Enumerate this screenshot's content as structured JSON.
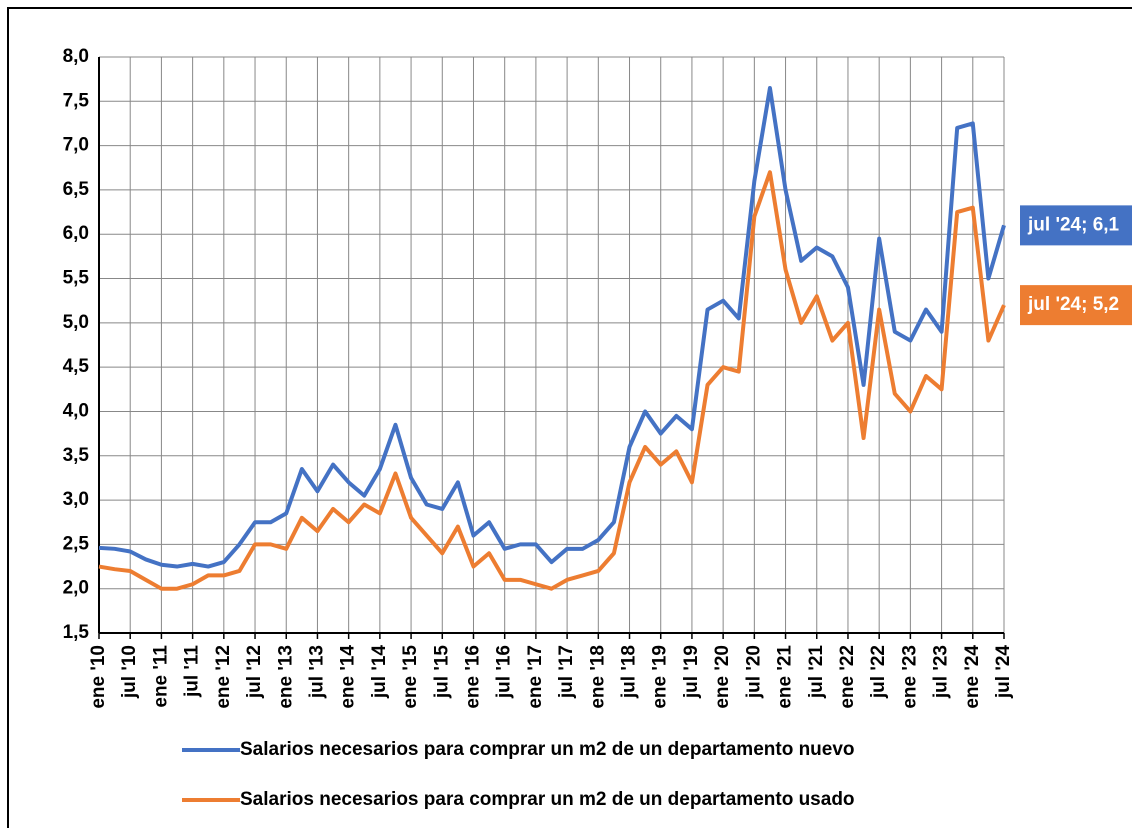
{
  "chart_data": {
    "type": "line",
    "categories": [
      "ene '10",
      null,
      "jul '10",
      null,
      "ene '11",
      null,
      "jul '11",
      null,
      "ene '12",
      null,
      "jul '12",
      null,
      "ene '13",
      null,
      "jul '13",
      null,
      "ene '14",
      null,
      "jul '14",
      null,
      "ene '15",
      null,
      "jul '15",
      null,
      "ene '16",
      null,
      "jul '16",
      null,
      "ene '17",
      null,
      "jul '17",
      null,
      "ene '18",
      null,
      "jul '18",
      null,
      "ene '19",
      null,
      "jul '19",
      null,
      "ene '20",
      null,
      "jul '20",
      null,
      "ene '21",
      null,
      "jul '21",
      null,
      "ene '22",
      null,
      "jul '22",
      null,
      "ene '23",
      null,
      "jul '23",
      null,
      "ene '24",
      null,
      "jul '24"
    ],
    "series": [
      {
        "name": "Salarios necesarios para comprar un m2 de un departamento nuevo",
        "color": "#4472c4",
        "values": [
          2.46,
          2.45,
          2.42,
          2.33,
          2.27,
          2.25,
          2.28,
          2.25,
          2.3,
          2.5,
          2.75,
          2.75,
          2.85,
          3.35,
          3.1,
          3.4,
          3.2,
          3.05,
          3.35,
          3.85,
          3.25,
          2.95,
          2.9,
          3.2,
          2.6,
          2.75,
          2.45,
          2.5,
          2.5,
          2.3,
          2.45,
          2.45,
          2.55,
          2.75,
          3.6,
          4.0,
          3.75,
          3.95,
          3.8,
          5.15,
          5.25,
          5.05,
          6.6,
          7.65,
          6.5,
          5.7,
          5.85,
          5.75,
          5.4,
          4.3,
          5.95,
          4.9,
          4.8,
          5.15,
          4.9,
          7.2,
          7.25,
          5.5,
          6.1
        ],
        "value_labels": [
          null,
          null,
          null,
          null,
          null,
          null,
          null,
          null,
          null,
          null,
          null,
          null,
          null,
          null,
          null,
          null,
          null,
          null,
          null,
          null,
          null,
          null,
          null,
          null,
          null,
          null,
          null,
          null,
          null,
          null,
          null,
          null,
          null,
          null,
          null,
          null,
          null,
          null,
          null,
          null,
          null,
          null,
          null,
          null,
          null,
          null,
          null,
          null,
          null,
          null,
          null,
          null,
          null,
          null,
          null,
          null,
          null,
          null,
          "jul '24; 6,1"
        ]
      },
      {
        "name": "Salarios necesarios para comprar un m2 de un departamento usado",
        "color": "#ed7d31",
        "values": [
          2.25,
          2.22,
          2.2,
          2.1,
          2.0,
          2.0,
          2.05,
          2.15,
          2.15,
          2.2,
          2.5,
          2.5,
          2.45,
          2.8,
          2.65,
          2.9,
          2.75,
          2.95,
          2.85,
          3.3,
          2.8,
          2.6,
          2.4,
          2.7,
          2.25,
          2.4,
          2.1,
          2.1,
          2.05,
          2.0,
          2.1,
          2.15,
          2.2,
          2.4,
          3.2,
          3.6,
          3.4,
          3.55,
          3.2,
          4.3,
          4.5,
          4.45,
          6.2,
          6.7,
          5.6,
          5.0,
          5.3,
          4.8,
          5.0,
          3.7,
          5.15,
          4.2,
          4.0,
          4.4,
          4.25,
          6.25,
          6.3,
          4.8,
          5.2
        ],
        "value_labels": [
          null,
          null,
          null,
          null,
          null,
          null,
          null,
          null,
          null,
          null,
          null,
          null,
          null,
          null,
          null,
          null,
          null,
          null,
          null,
          null,
          null,
          null,
          null,
          null,
          null,
          null,
          null,
          null,
          null,
          null,
          null,
          null,
          null,
          null,
          null,
          null,
          null,
          null,
          null,
          null,
          null,
          null,
          null,
          null,
          null,
          null,
          null,
          null,
          null,
          null,
          null,
          null,
          null,
          null,
          null,
          null,
          null,
          null,
          "jul '24; 5,2"
        ]
      }
    ],
    "ylim": [
      1.5,
      8.0
    ],
    "yticks": [
      {
        "value": 1.5,
        "label": "1,5"
      },
      {
        "value": 2.0,
        "label": "2,0"
      },
      {
        "value": 2.5,
        "label": "2,5"
      },
      {
        "value": 3.0,
        "label": "3,0"
      },
      {
        "value": 3.5,
        "label": "3,5"
      },
      {
        "value": 4.0,
        "label": "4,0"
      },
      {
        "value": 4.5,
        "label": "4,5"
      },
      {
        "value": 5.0,
        "label": "5,0"
      },
      {
        "value": 5.5,
        "label": "5,5"
      },
      {
        "value": 6.0,
        "label": "6,0"
      },
      {
        "value": 6.5,
        "label": "6,5"
      },
      {
        "value": 7.0,
        "label": "7,0"
      },
      {
        "value": 7.5,
        "label": "7,5"
      },
      {
        "value": 8.0,
        "label": "8,0"
      }
    ],
    "grid": true,
    "legend": "bottom"
  }
}
